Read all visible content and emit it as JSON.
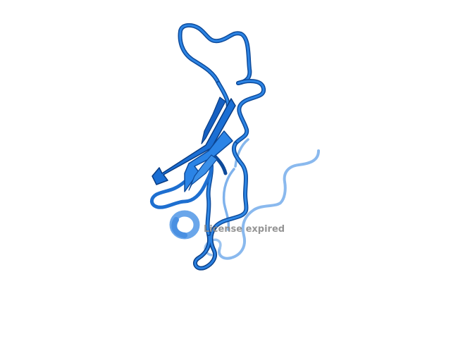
{
  "scene": {
    "background": "#ffffff",
    "subject": "protein-ribbon-cartoon",
    "colors": {
      "ribbon_dark": "#0b3f86",
      "ribbon_main": "#1a6fd6",
      "ribbon_light": "#5aa0ea",
      "ribbon_faint": "#8ab9ee"
    }
  },
  "watermark": {
    "text": "License expired",
    "color": "#8a8a8a"
  }
}
